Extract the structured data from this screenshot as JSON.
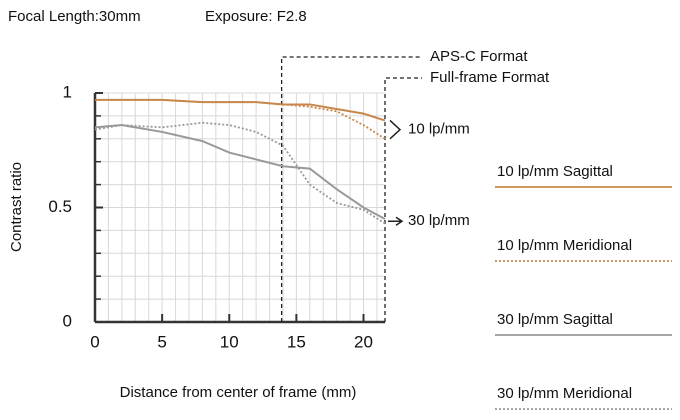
{
  "header": {
    "focal_length": "Focal Length:30mm",
    "exposure": "Exposure: F2.8"
  },
  "chart_data": {
    "type": "line",
    "x_label": "Distance from center of frame (mm)",
    "y_label": "Contrast ratio",
    "x": [
      0,
      2,
      5,
      8,
      10,
      12,
      14,
      16,
      18,
      20,
      21.6
    ],
    "series": [
      {
        "name": "10 lp/mm Sagittal",
        "color": "#c8874a",
        "style": "solid",
        "values": [
          0.97,
          0.97,
          0.97,
          0.96,
          0.96,
          0.96,
          0.95,
          0.95,
          0.93,
          0.91,
          0.88
        ]
      },
      {
        "name": "10 lp/mm Meridional",
        "color": "#c8874a",
        "style": "dotted",
        "values": [
          0.97,
          0.97,
          0.97,
          0.96,
          0.96,
          0.96,
          0.95,
          0.94,
          0.92,
          0.86,
          0.8
        ]
      },
      {
        "name": "30 lp/mm Sagittal",
        "color": "#999999",
        "style": "solid",
        "values": [
          0.85,
          0.86,
          0.83,
          0.79,
          0.74,
          0.71,
          0.68,
          0.67,
          0.58,
          0.5,
          0.45
        ]
      },
      {
        "name": "30 lp/mm Meridional",
        "color": "#999999",
        "style": "dotted",
        "values": [
          0.84,
          0.86,
          0.85,
          0.87,
          0.86,
          0.83,
          0.77,
          0.6,
          0.52,
          0.49,
          0.43
        ]
      }
    ],
    "curve_labels": [
      "10 lp/mm",
      "30 lp/mm"
    ],
    "format_markers": [
      {
        "label": "APS-C Format",
        "x": 13.9
      },
      {
        "label": "Full-frame Format",
        "x": 21.6
      }
    ],
    "xlim": [
      0,
      21.6
    ],
    "xticks": [
      0,
      5,
      10,
      15,
      20
    ],
    "ylim": [
      0,
      1
    ],
    "yticks": [
      0,
      0.5,
      1
    ],
    "grid": true
  }
}
